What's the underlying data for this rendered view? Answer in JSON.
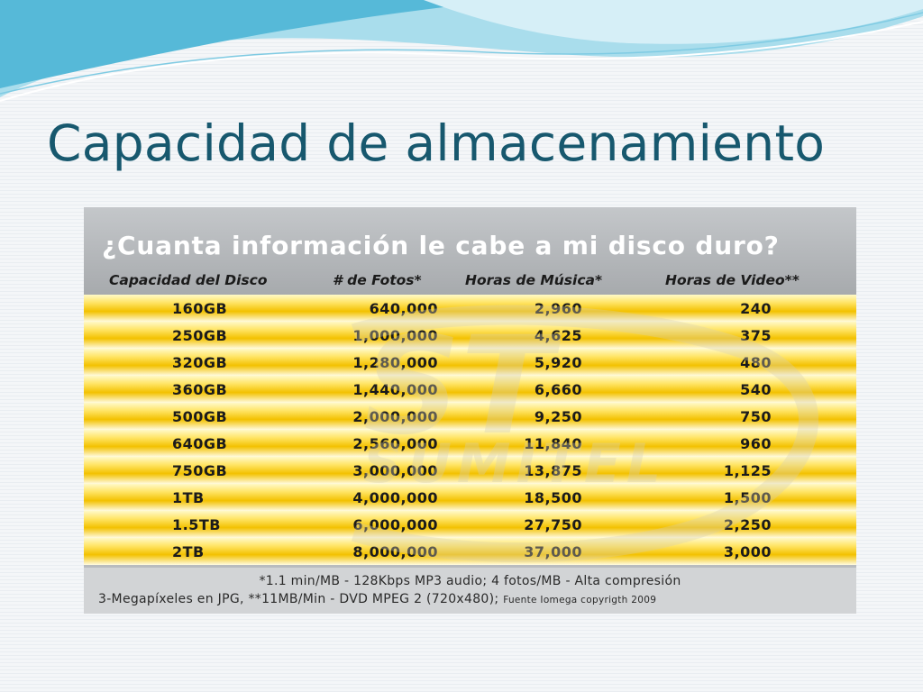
{
  "slide": {
    "title": "Capacidad de almacenamiento"
  },
  "infographic": {
    "heading": "¿Cuanta información le cabe a mi disco duro?",
    "columns": [
      "Capacidad del Disco",
      "# de Fotos*",
      "Horas de Música*",
      "Horas de Video**"
    ],
    "rows": [
      [
        "160GB",
        "640,000",
        "2,960",
        "240"
      ],
      [
        "250GB",
        "1,000,000",
        "4,625",
        "375"
      ],
      [
        "320GB",
        "1,280,000",
        "5,920",
        "480"
      ],
      [
        "360GB",
        "1,440,000",
        "6,660",
        "540"
      ],
      [
        "500GB",
        "2,000,000",
        "9,250",
        "750"
      ],
      [
        "640GB",
        "2,560,000",
        "11,840",
        "960"
      ],
      [
        "750GB",
        "3,000,000",
        "13,875",
        "1,125"
      ],
      [
        "1TB",
        "4,000,000",
        "18,500",
        "1,500"
      ],
      [
        "1.5TB",
        "6,000,000",
        "27,750",
        "2,250"
      ],
      [
        "2TB",
        "8,000,000",
        "37,000",
        "3,000"
      ]
    ],
    "watermark_text": "SUMITEL",
    "footnote_line1": "*1.1 min/MB - 128Kbps MP3 audio; 4 fotos/MB - Alta compresión",
    "footnote_line2": "3-Megapíxeles en JPG, **11MB/Min - DVD MPEG 2 (720x480);",
    "footnote_source": "Fuente Iomega copyrigth 2009"
  },
  "colors": {
    "title": "#17586e",
    "accent_wave": "#4fb3d4",
    "row_gold": "#f3c100",
    "panel_gray": "#b9bcbf"
  }
}
